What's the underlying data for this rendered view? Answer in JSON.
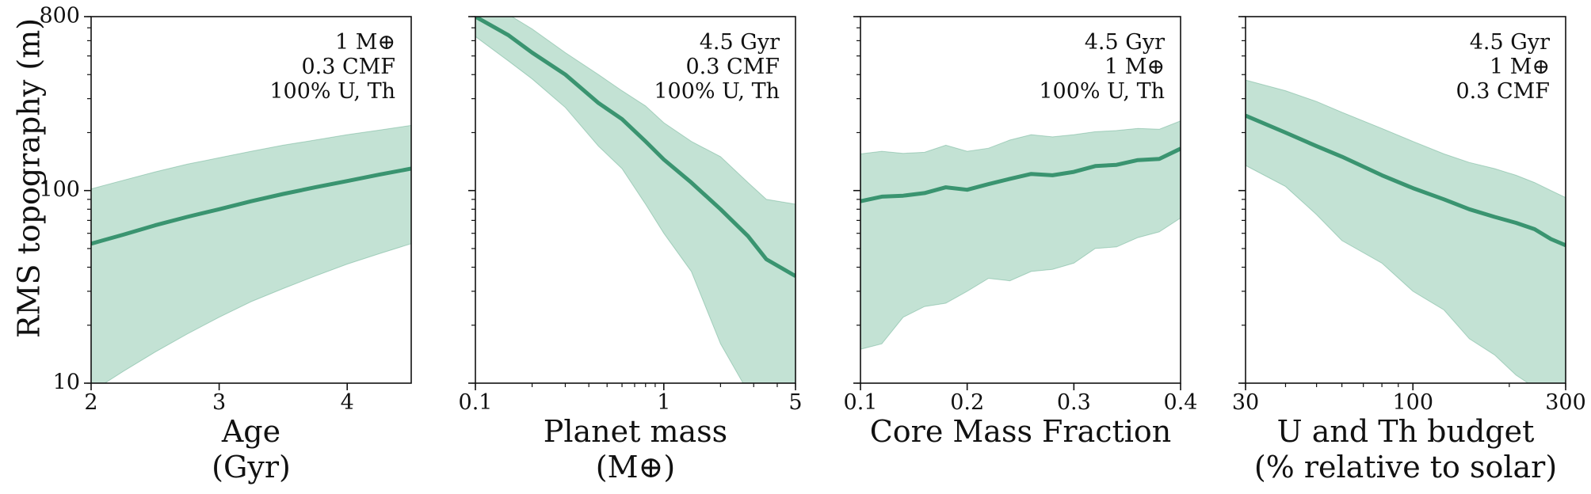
{
  "figure": {
    "ylabel": "RMS topography (m)"
  },
  "colors": {
    "line": "#3a9470",
    "band": "#a9d5c2",
    "axis": "#111111"
  },
  "chart_data": [
    {
      "type": "line",
      "xscale": "linear",
      "yscale": "log",
      "xlim": [
        2,
        4.5
      ],
      "ylim": [
        10,
        800
      ],
      "xticks": [
        2,
        3,
        4
      ],
      "xtick_labels": [
        "2",
        "3",
        "4"
      ],
      "yticks": [
        10,
        100,
        800
      ],
      "ytick_labels": [
        "10",
        "100",
        "800"
      ],
      "xlabel": [
        "Age",
        "(Gyr)"
      ],
      "annotation": [
        "1 M⊕",
        "0.3 CMF",
        "100% U, Th"
      ],
      "x": [
        2.0,
        2.25,
        2.5,
        2.75,
        3.0,
        3.25,
        3.5,
        3.75,
        4.0,
        4.25,
        4.5
      ],
      "y": [
        53,
        59,
        66,
        73,
        80,
        88,
        96,
        104,
        112,
        121,
        130
      ],
      "lower": [
        9,
        11.5,
        14.5,
        18,
        22,
        26.5,
        31,
        36,
        41.5,
        47,
        53
      ],
      "upper": [
        102,
        113,
        125,
        137,
        148,
        160,
        172,
        183,
        195,
        206,
        218
      ]
    },
    {
      "type": "line",
      "xscale": "log",
      "yscale": "log",
      "xlim": [
        0.1,
        5
      ],
      "ylim": [
        10,
        800
      ],
      "xticks": [
        0.1,
        1,
        5
      ],
      "xtick_labels": [
        "0.1",
        "1",
        "5"
      ],
      "yticks": [
        10,
        100,
        800
      ],
      "ytick_labels": [
        "",
        "",
        ""
      ],
      "xlabel": [
        "Planet mass",
        "(M⊕)"
      ],
      "annotation": [
        "4.5 Gyr",
        "0.3 CMF",
        "100% U, Th"
      ],
      "x": [
        0.1,
        0.15,
        0.2,
        0.3,
        0.45,
        0.6,
        0.8,
        1.0,
        1.4,
        2.0,
        2.8,
        3.5,
        5.0
      ],
      "y": [
        800,
        640,
        520,
        400,
        285,
        235,
        180,
        145,
        110,
        80,
        58,
        44,
        36
      ],
      "lower": [
        630,
        470,
        380,
        270,
        170,
        130,
        85,
        60,
        38,
        16,
        9,
        8,
        7
      ],
      "upper": [
        900,
        820,
        690,
        520,
        400,
        330,
        275,
        225,
        180,
        150,
        110,
        90,
        85
      ]
    },
    {
      "type": "line",
      "xscale": "linear",
      "yscale": "log",
      "xlim": [
        0.1,
        0.4
      ],
      "ylim": [
        10,
        800
      ],
      "xticks": [
        0.1,
        0.2,
        0.3,
        0.4
      ],
      "xtick_labels": [
        "0.1",
        "0.2",
        "0.3",
        "0.4"
      ],
      "yticks": [
        10,
        100,
        800
      ],
      "ytick_labels": [
        "",
        "",
        ""
      ],
      "xlabel": [
        "Core Mass Fraction"
      ],
      "annotation": [
        "4.5 Gyr",
        "1 M⊕",
        "100% U, Th"
      ],
      "x": [
        0.1,
        0.12,
        0.14,
        0.16,
        0.18,
        0.2,
        0.22,
        0.24,
        0.26,
        0.28,
        0.3,
        0.32,
        0.34,
        0.36,
        0.38,
        0.4
      ],
      "y": [
        88,
        93,
        94,
        97,
        104,
        101,
        108,
        115,
        122,
        120,
        125,
        134,
        136,
        144,
        146,
        165
      ],
      "lower": [
        15,
        16,
        22,
        25,
        26,
        30,
        35,
        34,
        38,
        39,
        42,
        50,
        51,
        57,
        61,
        72
      ],
      "upper": [
        155,
        160,
        156,
        158,
        172,
        160,
        166,
        183,
        195,
        190,
        195,
        202,
        205,
        210,
        208,
        230
      ]
    },
    {
      "type": "line",
      "xscale": "log",
      "yscale": "log",
      "xlim": [
        30,
        300
      ],
      "ylim": [
        10,
        800
      ],
      "xticks": [
        30,
        100,
        300
      ],
      "xtick_labels": [
        "30",
        "100",
        "300"
      ],
      "yticks": [
        10,
        100,
        800
      ],
      "ytick_labels": [
        "",
        "",
        ""
      ],
      "xlabel": [
        "U and Th budget",
        "(% relative to solar)"
      ],
      "annotation": [
        "4.5 Gyr",
        "1 M⊕",
        "0.3 CMF"
      ],
      "x": [
        30,
        40,
        50,
        60,
        80,
        100,
        125,
        150,
        180,
        210,
        240,
        270,
        300
      ],
      "y": [
        245,
        200,
        170,
        150,
        120,
        103,
        90,
        80,
        73,
        68,
        63,
        56,
        52
      ],
      "lower": [
        135,
        105,
        75,
        55,
        42,
        30,
        24,
        17,
        14,
        11,
        9.5,
        8.5,
        8
      ],
      "upper": [
        375,
        330,
        290,
        255,
        210,
        180,
        155,
        140,
        130,
        120,
        110,
        100,
        92
      ]
    }
  ]
}
